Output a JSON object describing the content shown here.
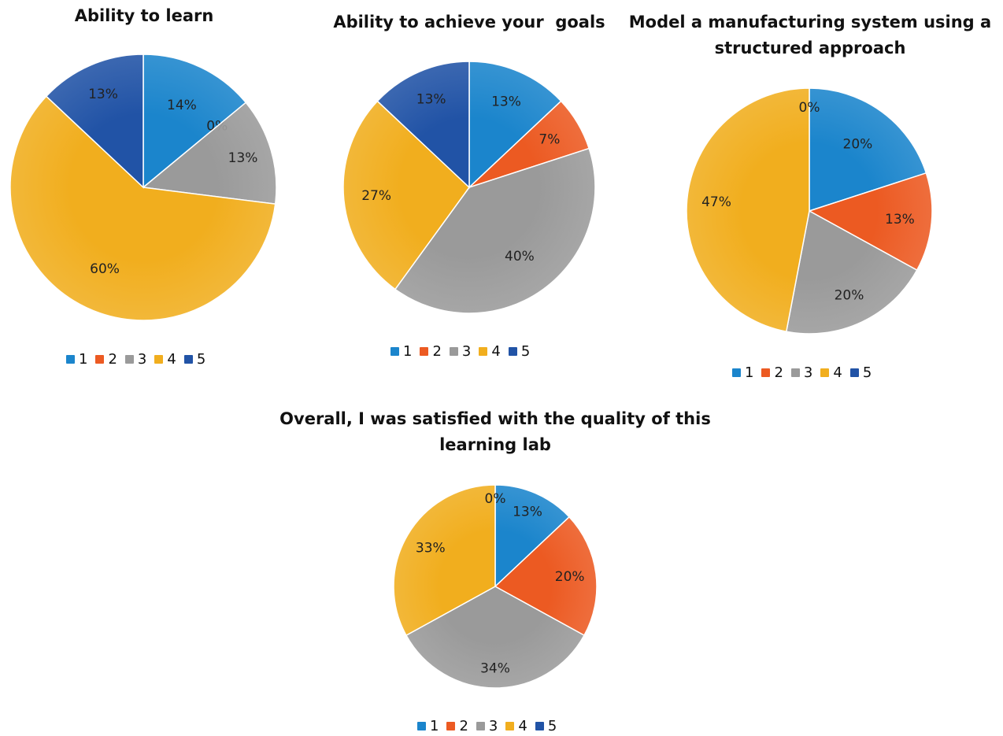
{
  "chart_data": [
    {
      "type": "pie",
      "title": "Ability to learn",
      "categories": [
        "1",
        "2",
        "3",
        "4",
        "5"
      ],
      "values": [
        14,
        0,
        13,
        60,
        13
      ],
      "labels": [
        "14%",
        "0%",
        "13%",
        "60%",
        "13%"
      ],
      "legend": "bottom"
    },
    {
      "type": "pie",
      "title": "Ability to achieve your  goals",
      "categories": [
        "1",
        "2",
        "3",
        "4",
        "5"
      ],
      "values": [
        13,
        7,
        40,
        27,
        13
      ],
      "labels": [
        "13%",
        "7%",
        "40%",
        "27%",
        "13%"
      ],
      "legend": "bottom"
    },
    {
      "type": "pie",
      "title": "Model a manufacturing system using a structured approach",
      "title_lines": [
        "Model a manufacturing system using a",
        "structured approach"
      ],
      "categories": [
        "1",
        "2",
        "3",
        "4",
        "5"
      ],
      "values": [
        20,
        13,
        20,
        47,
        0
      ],
      "labels": [
        "20%",
        "13%",
        "20%",
        "47%",
        "0%"
      ],
      "legend": "bottom"
    },
    {
      "type": "pie",
      "title": "Overall, I was satisfied with the quality of this learning lab",
      "title_lines": [
        "Overall, I was satisfied with the quality of this",
        "learning lab"
      ],
      "categories": [
        "1",
        "2",
        "3",
        "4",
        "5"
      ],
      "values": [
        13,
        20,
        34,
        33,
        0
      ],
      "labels": [
        "13%",
        "20%",
        "34%",
        "33%",
        "0%"
      ],
      "legend": "bottom"
    }
  ],
  "colors": {
    "1": "#1b85cc",
    "2": "#ec5a22",
    "3": "#9a9a9a",
    "4": "#f1ae1e",
    "5": "#2153a6"
  }
}
